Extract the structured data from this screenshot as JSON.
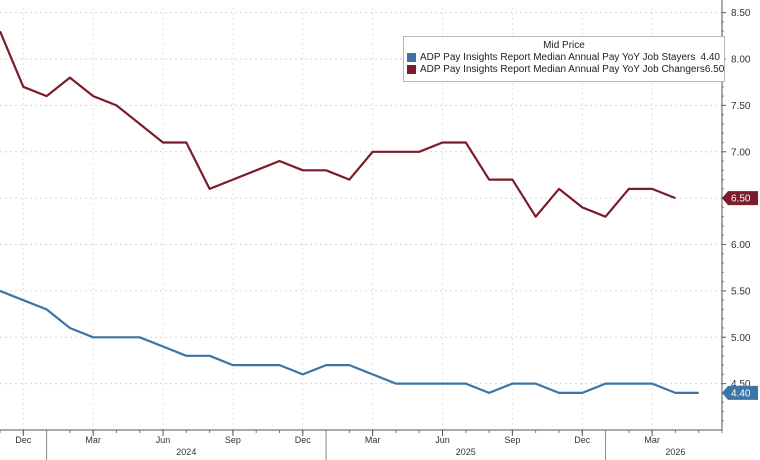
{
  "chart_data": {
    "type": "line",
    "legend_title": "Mid Price",
    "legend_position": "top-right",
    "series": [
      {
        "name": "ADP Pay Insights Report Median Annual Pay YoY Job Stayers",
        "last_label": "4.40",
        "color": "#3d74a6",
        "points": [
          [
            "2023-11",
            5.5
          ],
          [
            "2023-12",
            5.4
          ],
          [
            "2024-01",
            5.3
          ],
          [
            "2024-02",
            5.1
          ],
          [
            "2024-03",
            5.0
          ],
          [
            "2024-04",
            5.0
          ],
          [
            "2024-05",
            5.0
          ],
          [
            "2024-06",
            4.9
          ],
          [
            "2024-07",
            4.8
          ],
          [
            "2024-08",
            4.8
          ],
          [
            "2024-09",
            4.7
          ],
          [
            "2024-10",
            4.7
          ],
          [
            "2024-11",
            4.7
          ],
          [
            "2024-12",
            4.6
          ],
          [
            "2025-01",
            4.7
          ],
          [
            "2025-02",
            4.7
          ],
          [
            "2025-03",
            4.6
          ],
          [
            "2025-04",
            4.5
          ],
          [
            "2025-05",
            4.5
          ],
          [
            "2025-06",
            4.5
          ],
          [
            "2025-07",
            4.5
          ],
          [
            "2025-08",
            4.4
          ],
          [
            "2025-09",
            4.5
          ],
          [
            "2025-10",
            4.5
          ],
          [
            "2025-11",
            4.4
          ],
          [
            "2025-12",
            4.4
          ],
          [
            "2026-01",
            4.5
          ],
          [
            "2026-02",
            4.5
          ],
          [
            "2026-03",
            4.5
          ],
          [
            "2026-04",
            4.4
          ],
          [
            "2026-05",
            4.4
          ]
        ]
      },
      {
        "name": "ADP Pay Insights Report Median Annual Pay YoY Job Changers",
        "last_label": "6.50",
        "color": "#7b1c2a",
        "points": [
          [
            "2023-11",
            8.3
          ],
          [
            "2023-12",
            7.7
          ],
          [
            "2024-01",
            7.6
          ],
          [
            "2024-02",
            7.8
          ],
          [
            "2024-03",
            7.6
          ],
          [
            "2024-04",
            7.5
          ],
          [
            "2024-05",
            7.3
          ],
          [
            "2024-06",
            7.1
          ],
          [
            "2024-07",
            7.1
          ],
          [
            "2024-08",
            6.6
          ],
          [
            "2024-09",
            6.7
          ],
          [
            "2024-10",
            6.8
          ],
          [
            "2024-11",
            6.9
          ],
          [
            "2024-12",
            6.8
          ],
          [
            "2025-01",
            6.8
          ],
          [
            "2025-02",
            6.7
          ],
          [
            "2025-03",
            7.0
          ],
          [
            "2025-04",
            7.0
          ],
          [
            "2025-05",
            7.0
          ],
          [
            "2025-06",
            7.1
          ],
          [
            "2025-07",
            7.1
          ],
          [
            "2025-08",
            6.7
          ],
          [
            "2025-09",
            6.7
          ],
          [
            "2025-10",
            6.3
          ],
          [
            "2025-11",
            6.6
          ],
          [
            "2025-12",
            6.4
          ],
          [
            "2026-01",
            6.3
          ],
          [
            "2026-02",
            6.6
          ],
          [
            "2026-03",
            6.6
          ],
          [
            "2026-04",
            6.5
          ]
        ]
      }
    ],
    "y_axis": {
      "ticks": [
        "8.50",
        "8.00",
        "7.50",
        "7.00",
        "6.50",
        "6.00",
        "5.50",
        "5.00",
        "4.50"
      ],
      "ylim": [
        4.0,
        8.55
      ]
    },
    "x_axis": {
      "range": [
        "2023-11",
        "2026-06"
      ],
      "month_ticks": [
        {
          "date": "2023-12",
          "label": "Dec"
        },
        {
          "date": "2024-03",
          "label": "Mar"
        },
        {
          "date": "2024-06",
          "label": "Jun"
        },
        {
          "date": "2024-09",
          "label": "Sep"
        },
        {
          "date": "2024-12",
          "label": "Dec"
        },
        {
          "date": "2025-03",
          "label": "Mar"
        },
        {
          "date": "2025-06",
          "label": "Jun"
        },
        {
          "date": "2025-09",
          "label": "Sep"
        },
        {
          "date": "2025-12",
          "label": "Dec"
        },
        {
          "date": "2026-03",
          "label": "Mar"
        }
      ],
      "year_labels": [
        {
          "date": "2024-07",
          "label": "2024"
        },
        {
          "date": "2025-07",
          "label": "2025"
        },
        {
          "date": "2026-04",
          "label": "2026"
        }
      ]
    },
    "grid": "horizontal dashed"
  }
}
